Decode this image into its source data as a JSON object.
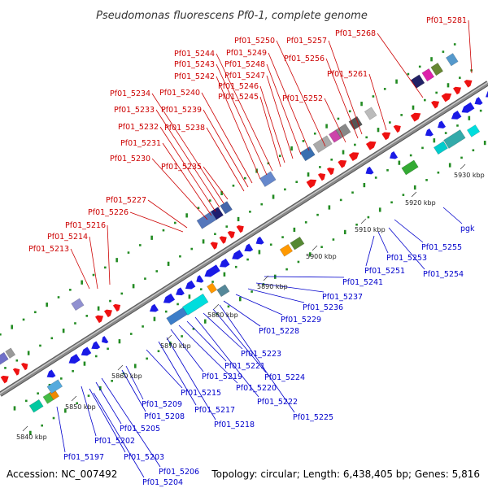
{
  "title": "Pseudomonas fluorescens Pf0-1, complete genome",
  "footer": {
    "accession": "Accession: NC_007492",
    "summary": "Topology: circular; Length: 6,438,405 bp; Genes: 5,816"
  },
  "colors": {
    "forward_label": "#cc0000",
    "reverse_label": "#0000cc",
    "forward_gene": "#ee1111",
    "reverse_gene": "#1a1ae6",
    "backbone": "#8a8a8a",
    "tick_dot": "#228b22"
  },
  "ticks": [
    {
      "label": "5840 kbp"
    },
    {
      "label": "5850 kbp"
    },
    {
      "label": "5860 kbp"
    },
    {
      "label": "5870 kbp"
    },
    {
      "label": "5880 kbp"
    },
    {
      "label": "5890 kbp"
    },
    {
      "label": "5900 kbp"
    },
    {
      "label": "5910 kbp"
    },
    {
      "label": "5920 kbp"
    },
    {
      "label": "5930 kbp"
    }
  ],
  "forward_labels": [
    {
      "text": "Pf01_5213"
    },
    {
      "text": "Pf01_5214"
    },
    {
      "text": "Pf01_5216"
    },
    {
      "text": "Pf01_5226"
    },
    {
      "text": "Pf01_5227"
    },
    {
      "text": "Pf01_5230"
    },
    {
      "text": "Pf01_5231"
    },
    {
      "text": "Pf01_5232"
    },
    {
      "text": "Pf01_5233"
    },
    {
      "text": "Pf01_5234"
    },
    {
      "text": "Pf01_5235"
    },
    {
      "text": "Pf01_5238"
    },
    {
      "text": "Pf01_5239"
    },
    {
      "text": "Pf01_5240"
    },
    {
      "text": "Pf01_5242"
    },
    {
      "text": "Pf01_5243"
    },
    {
      "text": "Pf01_5244"
    },
    {
      "text": "Pf01_5245"
    },
    {
      "text": "Pf01_5246"
    },
    {
      "text": "Pf01_5247"
    },
    {
      "text": "Pf01_5248"
    },
    {
      "text": "Pf01_5249"
    },
    {
      "text": "Pf01_5250"
    },
    {
      "text": "Pf01_5252"
    },
    {
      "text": "Pf01_5256"
    },
    {
      "text": "Pf01_5257"
    },
    {
      "text": "Pf01_5261"
    },
    {
      "text": "Pf01_5268"
    },
    {
      "text": "Pf01_5281"
    }
  ],
  "reverse_labels": [
    {
      "text": "Pf01_5197"
    },
    {
      "text": "Pf01_5202"
    },
    {
      "text": "Pf01_5203"
    },
    {
      "text": "Pf01_5204"
    },
    {
      "text": "Pf01_5205"
    },
    {
      "text": "Pf01_5206"
    },
    {
      "text": "Pf01_5208"
    },
    {
      "text": "Pf01_5209"
    },
    {
      "text": "Pf01_5215"
    },
    {
      "text": "Pf01_5217"
    },
    {
      "text": "Pf01_5218"
    },
    {
      "text": "Pf01_5219"
    },
    {
      "text": "Pf01_5220"
    },
    {
      "text": "Pf01_5221"
    },
    {
      "text": "Pf01_5222"
    },
    {
      "text": "Pf01_5223"
    },
    {
      "text": "Pf01_5224"
    },
    {
      "text": "Pf01_5225"
    },
    {
      "text": "Pf01_5228"
    },
    {
      "text": "Pf01_5229"
    },
    {
      "text": "Pf01_5236"
    },
    {
      "text": "Pf01_5237"
    },
    {
      "text": "Pf01_5241"
    },
    {
      "text": "Pf01_5251"
    },
    {
      "text": "Pf01_5253"
    },
    {
      "text": "Pf01_5254"
    },
    {
      "text": "Pf01_5255"
    },
    {
      "text": "pgk"
    }
  ]
}
